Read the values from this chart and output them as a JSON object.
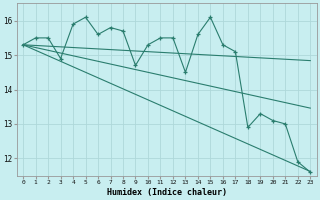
{
  "xlabel": "Humidex (Indice chaleur)",
  "x": [
    0,
    1,
    2,
    3,
    4,
    5,
    6,
    7,
    8,
    9,
    10,
    11,
    12,
    13,
    14,
    15,
    16,
    17,
    18,
    19,
    20,
    21,
    22,
    23
  ],
  "line1_jagged": [
    15.3,
    15.5,
    15.5,
    14.9,
    15.9,
    16.1,
    15.6,
    15.8,
    15.7,
    14.7,
    15.3,
    15.5,
    15.5,
    14.5,
    15.6,
    16.1,
    15.3,
    15.1,
    12.9,
    13.3,
    13.1,
    13.0,
    11.9,
    11.6
  ],
  "line2_smooth": [
    15.3,
    15.28,
    15.26,
    15.24,
    15.22,
    15.2,
    15.18,
    15.16,
    15.14,
    15.12,
    15.1,
    15.08,
    15.06,
    15.04,
    15.02,
    15.0,
    14.98,
    14.96,
    14.94,
    14.92,
    14.9,
    14.88,
    14.86,
    14.84
  ],
  "line3_smooth": [
    15.3,
    15.22,
    15.14,
    15.06,
    14.98,
    14.9,
    14.82,
    14.74,
    14.66,
    14.58,
    14.5,
    14.42,
    14.34,
    14.26,
    14.18,
    14.1,
    14.02,
    13.94,
    13.86,
    13.78,
    13.7,
    13.62,
    13.54,
    13.46
  ],
  "line4_smooth": [
    15.3,
    15.14,
    14.98,
    14.82,
    14.66,
    14.5,
    14.34,
    14.18,
    14.02,
    13.86,
    13.7,
    13.54,
    13.38,
    13.22,
    13.06,
    12.9,
    12.74,
    12.58,
    12.42,
    12.26,
    12.1,
    11.94,
    11.78,
    11.62
  ],
  "line_color": "#2a7d6e",
  "bg_color": "#c8eef0",
  "grid_color": "#aed8da",
  "ylim": [
    11.5,
    16.5
  ],
  "xlim": [
    -0.5,
    23.5
  ],
  "yticks": [
    12,
    13,
    14,
    15,
    16
  ],
  "xticks": [
    0,
    1,
    2,
    3,
    4,
    5,
    6,
    7,
    8,
    9,
    10,
    11,
    12,
    13,
    14,
    15,
    16,
    17,
    18,
    19,
    20,
    21,
    22,
    23
  ]
}
